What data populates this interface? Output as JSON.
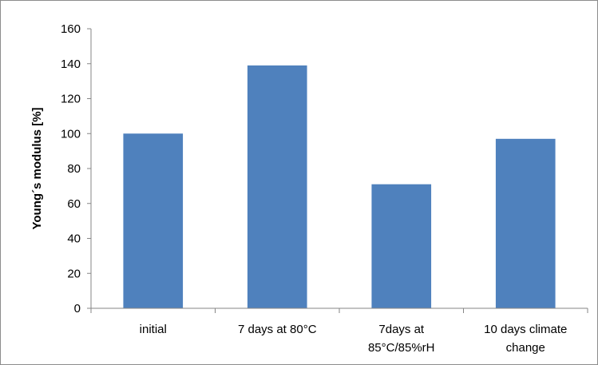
{
  "chart_data": {
    "type": "bar",
    "title": "",
    "xlabel": "",
    "ylabel": "Young´s modulus [%]",
    "ylim": [
      0,
      160
    ],
    "yticks": [
      0,
      20,
      40,
      60,
      80,
      100,
      120,
      140,
      160
    ],
    "ytick_labels": [
      "0",
      "20",
      "40",
      "60",
      "80",
      "100",
      "120",
      "140",
      "160"
    ],
    "categories": [
      [
        "initial"
      ],
      [
        "7 days at 80°C"
      ],
      [
        "7days at",
        "85°C/85%rH"
      ],
      [
        "10 days climate",
        "change"
      ]
    ],
    "values": [
      100,
      139,
      71,
      97
    ],
    "grid": false,
    "legend": "none",
    "colors": {
      "bar": "#4F81BD",
      "axis": "#868686",
      "border": "#8c8c8c"
    }
  }
}
